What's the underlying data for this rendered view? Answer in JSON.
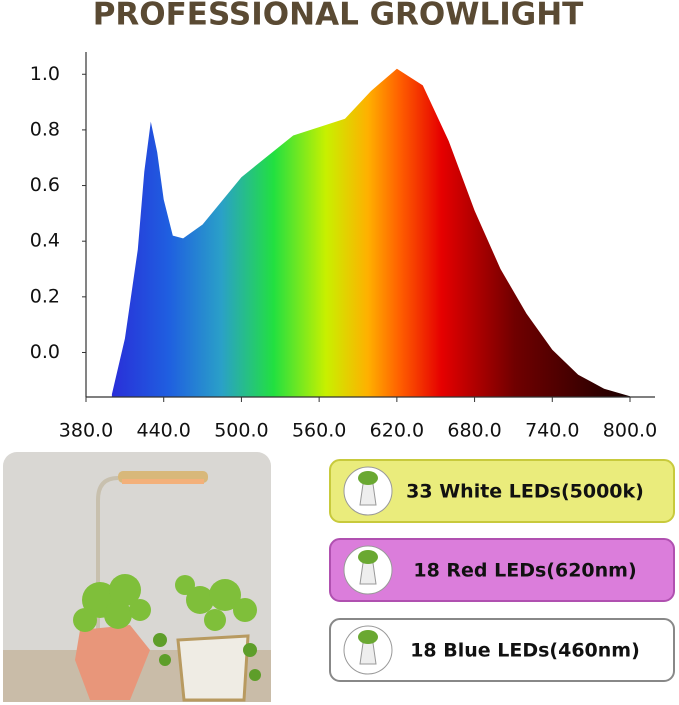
{
  "chart_data": {
    "type": "area",
    "title": "PROFESSIONAL GROWLIGHT",
    "x": [
      400,
      410,
      420,
      425,
      430,
      435,
      440,
      447,
      455,
      470,
      500,
      540,
      580,
      600,
      620,
      640,
      660,
      680,
      700,
      720,
      740,
      760,
      780,
      800
    ],
    "values": [
      -0.15,
      0.05,
      0.37,
      0.65,
      0.83,
      0.72,
      0.55,
      0.42,
      0.41,
      0.46,
      0.63,
      0.78,
      0.84,
      0.94,
      1.02,
      0.96,
      0.76,
      0.51,
      0.3,
      0.14,
      0.01,
      -0.08,
      -0.13,
      -0.157
    ],
    "xlim": [
      380,
      800
    ],
    "ylim": [
      -0.16,
      1.08
    ],
    "xticks": [
      {
        "value": 380,
        "label": "380.0"
      },
      {
        "value": 440,
        "label": "440.0"
      },
      {
        "value": 500,
        "label": "500.0"
      },
      {
        "value": 560,
        "label": "560.0"
      },
      {
        "value": 620,
        "label": "620.0"
      },
      {
        "value": 680,
        "label": "680.0"
      },
      {
        "value": 740,
        "label": "740.0"
      },
      {
        "value": 800,
        "label": "800.0"
      }
    ],
    "yticks": [
      {
        "value": 0,
        "label": "0.0"
      },
      {
        "value": 0.2,
        "label": "0.2"
      },
      {
        "value": 0.4,
        "label": "0.4"
      },
      {
        "value": 0.6,
        "label": "0.6"
      },
      {
        "value": 0.8,
        "label": "0.8"
      },
      {
        "value": 1,
        "label": "1.0"
      }
    ]
  },
  "badges": [
    "33 White LEDs(5000k)",
    "18 Red LEDs(620nm)",
    "18 Blue LEDs(460nm)"
  ]
}
